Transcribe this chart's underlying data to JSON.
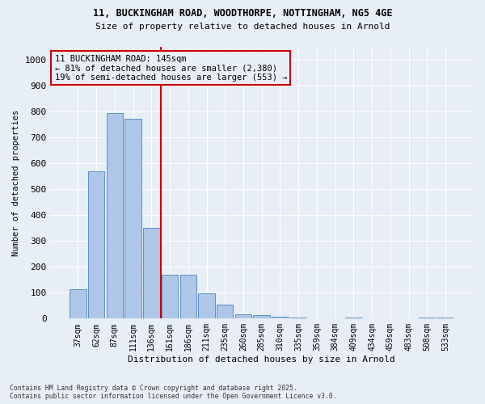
{
  "title_line1": "11, BUCKINGHAM ROAD, WOODTHORPE, NOTTINGHAM, NG5 4GE",
  "title_line2": "Size of property relative to detached houses in Arnold",
  "xlabel": "Distribution of detached houses by size in Arnold",
  "ylabel": "Number of detached properties",
  "categories": [
    "37sqm",
    "62sqm",
    "87sqm",
    "111sqm",
    "136sqm",
    "161sqm",
    "186sqm",
    "211sqm",
    "235sqm",
    "260sqm",
    "285sqm",
    "310sqm",
    "335sqm",
    "359sqm",
    "384sqm",
    "409sqm",
    "434sqm",
    "459sqm",
    "483sqm",
    "508sqm",
    "533sqm"
  ],
  "values": [
    113,
    567,
    793,
    770,
    350,
    168,
    168,
    97,
    53,
    17,
    12,
    8,
    5,
    0,
    0,
    5,
    0,
    0,
    0,
    5,
    5
  ],
  "bar_color": "#aec6e8",
  "bar_edge_color": "#5b8fc4",
  "vline_color": "#cc0000",
  "annotation_title": "11 BUCKINGHAM ROAD: 145sqm",
  "annotation_line2": "← 81% of detached houses are smaller (2,380)",
  "annotation_line3": "19% of semi-detached houses are larger (553) →",
  "annotation_box_color": "#cc0000",
  "bg_color": "#e8eef5",
  "grid_color": "#ffffff",
  "ylim": [
    0,
    1050
  ],
  "yticks": [
    0,
    100,
    200,
    300,
    400,
    500,
    600,
    700,
    800,
    900,
    1000
  ],
  "footer_line1": "Contains HM Land Registry data © Crown copyright and database right 2025.",
  "footer_line2": "Contains public sector information licensed under the Open Government Licence v3.0."
}
